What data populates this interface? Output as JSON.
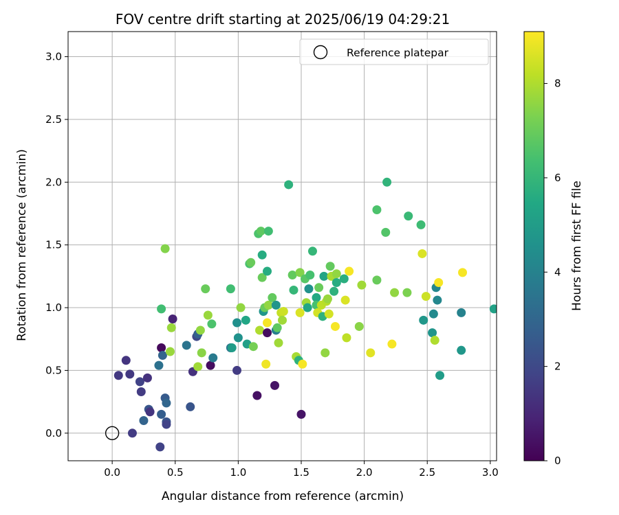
{
  "chart_data": {
    "type": "scatter",
    "title": "FOV centre drift starting at 2025/06/19 04:29:21",
    "xlabel": "Angular distance from reference (arcmin)",
    "ylabel": "Rotation from reference (arcmin)",
    "xlim": [
      -0.35,
      3.05
    ],
    "ylim": [
      -0.22,
      3.2
    ],
    "xticks": [
      "0.0",
      "0.5",
      "1.0",
      "1.5",
      "2.0",
      "2.5",
      "3.0"
    ],
    "yticks": [
      "0.0",
      "0.5",
      "1.0",
      "1.5",
      "2.0",
      "2.5",
      "3.0"
    ],
    "grid": true,
    "legend": {
      "position": "top-right",
      "entries": [
        "Reference platepar"
      ]
    },
    "reference_point": {
      "x": 0.0,
      "y": 0.0,
      "marker": "open-circle"
    },
    "colorbar": {
      "label": "Hours from first FF file",
      "min": 0,
      "max": 9.1,
      "ticks": [
        "0",
        "2",
        "4",
        "6",
        "8"
      ],
      "colormap": "viridis"
    },
    "points": [
      {
        "x": 0.05,
        "y": 0.46,
        "h": 1.5
      },
      {
        "x": 0.11,
        "y": 0.58,
        "h": 1.4
      },
      {
        "x": 0.14,
        "y": 0.47,
        "h": 1.5
      },
      {
        "x": 0.16,
        "y": 0.0,
        "h": 1.6
      },
      {
        "x": 0.22,
        "y": 0.41,
        "h": 1.8
      },
      {
        "x": 0.23,
        "y": 0.33,
        "h": 1.6
      },
      {
        "x": 0.25,
        "y": 0.1,
        "h": 2.9
      },
      {
        "x": 0.28,
        "y": 0.44,
        "h": 1.3
      },
      {
        "x": 0.29,
        "y": 0.19,
        "h": 2.4
      },
      {
        "x": 0.3,
        "y": 0.17,
        "h": 1.4
      },
      {
        "x": 0.37,
        "y": 0.54,
        "h": 3.4
      },
      {
        "x": 0.39,
        "y": 0.68,
        "h": 0.2
      },
      {
        "x": 0.39,
        "y": 0.15,
        "h": 2.7
      },
      {
        "x": 0.38,
        "y": -0.11,
        "h": 1.8
      },
      {
        "x": 0.4,
        "y": 0.62,
        "h": 2.9
      },
      {
        "x": 0.42,
        "y": 0.28,
        "h": 2.6
      },
      {
        "x": 0.43,
        "y": 0.24,
        "h": 3.0
      },
      {
        "x": 0.43,
        "y": 0.09,
        "h": 2.4
      },
      {
        "x": 0.43,
        "y": 0.07,
        "h": 1.8
      },
      {
        "x": 0.39,
        "y": 0.99,
        "h": 6.3
      },
      {
        "x": 0.42,
        "y": 1.47,
        "h": 7.4
      },
      {
        "x": 0.46,
        "y": 0.65,
        "h": 7.7
      },
      {
        "x": 0.47,
        "y": 0.84,
        "h": 7.7
      },
      {
        "x": 0.48,
        "y": 0.91,
        "h": 0.9
      },
      {
        "x": 0.59,
        "y": 0.7,
        "h": 3.5
      },
      {
        "x": 0.62,
        "y": 0.21,
        "h": 2.4
      },
      {
        "x": 0.64,
        "y": 0.49,
        "h": 1.3
      },
      {
        "x": 0.67,
        "y": 0.77,
        "h": 2.0
      },
      {
        "x": 0.68,
        "y": 0.79,
        "h": 2.8
      },
      {
        "x": 0.68,
        "y": 0.53,
        "h": 7.8
      },
      {
        "x": 0.7,
        "y": 0.82,
        "h": 7.6
      },
      {
        "x": 0.71,
        "y": 0.64,
        "h": 7.5
      },
      {
        "x": 0.74,
        "y": 1.15,
        "h": 7.0
      },
      {
        "x": 0.76,
        "y": 0.94,
        "h": 7.7
      },
      {
        "x": 0.78,
        "y": 0.54,
        "h": 0.3
      },
      {
        "x": 0.79,
        "y": 0.87,
        "h": 6.5
      },
      {
        "x": 0.8,
        "y": 0.6,
        "h": 3.7
      },
      {
        "x": 0.94,
        "y": 0.68,
        "h": 3.5
      },
      {
        "x": 0.95,
        "y": 0.68,
        "h": 5.0
      },
      {
        "x": 0.94,
        "y": 1.15,
        "h": 6.3
      },
      {
        "x": 0.99,
        "y": 0.88,
        "h": 4.5
      },
      {
        "x": 0.99,
        "y": 0.5,
        "h": 1.6
      },
      {
        "x": 1.0,
        "y": 0.76,
        "h": 4.6
      },
      {
        "x": 1.02,
        "y": 1.0,
        "h": 7.6
      },
      {
        "x": 1.06,
        "y": 0.9,
        "h": 5.4
      },
      {
        "x": 1.07,
        "y": 0.71,
        "h": 5.1
      },
      {
        "x": 1.09,
        "y": 1.35,
        "h": 6.4
      },
      {
        "x": 1.1,
        "y": 1.36,
        "h": 7.0
      },
      {
        "x": 1.12,
        "y": 0.69,
        "h": 7.2
      },
      {
        "x": 1.15,
        "y": 0.3,
        "h": 0.4
      },
      {
        "x": 1.16,
        "y": 1.59,
        "h": 6.5
      },
      {
        "x": 1.17,
        "y": 0.82,
        "h": 8.0
      },
      {
        "x": 1.18,
        "y": 1.61,
        "h": 6.8
      },
      {
        "x": 1.19,
        "y": 1.42,
        "h": 5.6
      },
      {
        "x": 1.19,
        "y": 1.24,
        "h": 7.0
      },
      {
        "x": 1.2,
        "y": 0.97,
        "h": 4.7
      },
      {
        "x": 1.21,
        "y": 1.0,
        "h": 7.0
      },
      {
        "x": 1.22,
        "y": 0.55,
        "h": 8.9
      },
      {
        "x": 1.23,
        "y": 1.29,
        "h": 5.6
      },
      {
        "x": 1.23,
        "y": 0.8,
        "h": 0.3
      },
      {
        "x": 1.23,
        "y": 0.88,
        "h": 9.0
      },
      {
        "x": 1.24,
        "y": 1.02,
        "h": 7.6
      },
      {
        "x": 1.24,
        "y": 1.61,
        "h": 6.3
      },
      {
        "x": 1.27,
        "y": 1.08,
        "h": 6.9
      },
      {
        "x": 1.29,
        "y": 0.38,
        "h": 0.5
      },
      {
        "x": 1.3,
        "y": 1.02,
        "h": 4.7
      },
      {
        "x": 1.3,
        "y": 0.82,
        "h": 3.9
      },
      {
        "x": 1.31,
        "y": 0.84,
        "h": 6.8
      },
      {
        "x": 1.32,
        "y": 0.72,
        "h": 7.8
      },
      {
        "x": 1.34,
        "y": 0.96,
        "h": 8.3
      },
      {
        "x": 1.35,
        "y": 0.9,
        "h": 7.8
      },
      {
        "x": 1.36,
        "y": 0.97,
        "h": 8.4
      },
      {
        "x": 1.4,
        "y": 1.98,
        "h": 5.8
      },
      {
        "x": 1.43,
        "y": 1.26,
        "h": 6.9
      },
      {
        "x": 1.44,
        "y": 1.14,
        "h": 6.0
      },
      {
        "x": 1.46,
        "y": 0.61,
        "h": 7.9
      },
      {
        "x": 1.48,
        "y": 0.58,
        "h": 5.8
      },
      {
        "x": 1.49,
        "y": 1.28,
        "h": 7.4
      },
      {
        "x": 1.49,
        "y": 0.96,
        "h": 8.6
      },
      {
        "x": 1.5,
        "y": 0.15,
        "h": 0.5
      },
      {
        "x": 1.51,
        "y": 0.55,
        "h": 9.0
      },
      {
        "x": 1.53,
        "y": 1.23,
        "h": 6.7
      },
      {
        "x": 1.54,
        "y": 1.04,
        "h": 7.8
      },
      {
        "x": 1.55,
        "y": 1.0,
        "h": 5.4
      },
      {
        "x": 1.56,
        "y": 1.15,
        "h": 4.6
      },
      {
        "x": 1.57,
        "y": 1.26,
        "h": 6.4
      },
      {
        "x": 1.59,
        "y": 1.45,
        "h": 6.0
      },
      {
        "x": 1.62,
        "y": 1.08,
        "h": 5.5
      },
      {
        "x": 1.62,
        "y": 1.02,
        "h": 6.4
      },
      {
        "x": 1.63,
        "y": 0.96,
        "h": 8.5
      },
      {
        "x": 1.64,
        "y": 1.16,
        "h": 7.0
      },
      {
        "x": 1.66,
        "y": 1.02,
        "h": 8.2
      },
      {
        "x": 1.67,
        "y": 0.93,
        "h": 5.8
      },
      {
        "x": 1.68,
        "y": 1.25,
        "h": 5.3
      },
      {
        "x": 1.69,
        "y": 0.64,
        "h": 7.6
      },
      {
        "x": 1.7,
        "y": 1.05,
        "h": 8.1
      },
      {
        "x": 1.71,
        "y": 1.07,
        "h": 7.7
      },
      {
        "x": 1.72,
        "y": 0.95,
        "h": 8.5
      },
      {
        "x": 1.73,
        "y": 1.33,
        "h": 6.9
      },
      {
        "x": 1.74,
        "y": 1.25,
        "h": 7.9
      },
      {
        "x": 1.76,
        "y": 1.13,
        "h": 5.8
      },
      {
        "x": 1.77,
        "y": 0.85,
        "h": 9.0
      },
      {
        "x": 1.78,
        "y": 1.27,
        "h": 7.6
      },
      {
        "x": 1.78,
        "y": 1.2,
        "h": 5.6
      },
      {
        "x": 1.84,
        "y": 1.23,
        "h": 5.7
      },
      {
        "x": 1.85,
        "y": 1.06,
        "h": 8.6
      },
      {
        "x": 1.86,
        "y": 0.76,
        "h": 8.2
      },
      {
        "x": 1.88,
        "y": 1.29,
        "h": 9.0
      },
      {
        "x": 1.96,
        "y": 0.85,
        "h": 7.5
      },
      {
        "x": 1.98,
        "y": 1.18,
        "h": 7.8
      },
      {
        "x": 2.05,
        "y": 0.64,
        "h": 8.7
      },
      {
        "x": 2.1,
        "y": 1.78,
        "h": 6.5
      },
      {
        "x": 2.1,
        "y": 1.22,
        "h": 7.0
      },
      {
        "x": 2.17,
        "y": 1.6,
        "h": 6.6
      },
      {
        "x": 2.18,
        "y": 2.0,
        "h": 5.9
      },
      {
        "x": 2.22,
        "y": 0.71,
        "h": 9.0
      },
      {
        "x": 2.24,
        "y": 1.12,
        "h": 7.6
      },
      {
        "x": 2.34,
        "y": 1.12,
        "h": 7.3
      },
      {
        "x": 2.35,
        "y": 1.73,
        "h": 6.1
      },
      {
        "x": 2.45,
        "y": 1.66,
        "h": 6.2
      },
      {
        "x": 2.46,
        "y": 1.43,
        "h": 8.6
      },
      {
        "x": 2.47,
        "y": 0.9,
        "h": 4.8
      },
      {
        "x": 2.49,
        "y": 1.09,
        "h": 8.4
      },
      {
        "x": 2.54,
        "y": 0.8,
        "h": 4.7
      },
      {
        "x": 2.55,
        "y": 0.95,
        "h": 4.3
      },
      {
        "x": 2.56,
        "y": 0.74,
        "h": 8.0
      },
      {
        "x": 2.57,
        "y": 1.16,
        "h": 4.2
      },
      {
        "x": 2.58,
        "y": 1.06,
        "h": 4.2
      },
      {
        "x": 2.59,
        "y": 1.2,
        "h": 9.0
      },
      {
        "x": 2.6,
        "y": 0.46,
        "h": 5.0
      },
      {
        "x": 2.77,
        "y": 0.96,
        "h": 4.0
      },
      {
        "x": 2.77,
        "y": 0.66,
        "h": 4.8
      },
      {
        "x": 2.78,
        "y": 1.28,
        "h": 9.0
      },
      {
        "x": 3.03,
        "y": 0.99,
        "h": 5.2
      }
    ]
  }
}
